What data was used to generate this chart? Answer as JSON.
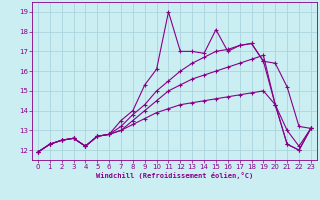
{
  "xlabel": "Windchill (Refroidissement éolien,°C)",
  "bg_color": "#cbeef3",
  "grid_color": "#aad4dd",
  "line_color": "#880088",
  "xlim": [
    -0.5,
    23.5
  ],
  "ylim": [
    11.5,
    19.5
  ],
  "yticks": [
    12,
    13,
    14,
    15,
    16,
    17,
    18,
    19
  ],
  "xticks": [
    0,
    1,
    2,
    3,
    4,
    5,
    6,
    7,
    8,
    9,
    10,
    11,
    12,
    13,
    14,
    15,
    16,
    17,
    18,
    19,
    20,
    21,
    22,
    23
  ],
  "lines": [
    [
      11.9,
      12.3,
      12.5,
      12.6,
      12.2,
      12.7,
      12.8,
      13.5,
      14.0,
      15.3,
      16.1,
      19.0,
      17.0,
      17.0,
      16.9,
      18.1,
      17.0,
      17.3,
      17.4,
      16.5,
      14.3,
      12.3,
      12.0,
      13.1
    ],
    [
      11.9,
      12.3,
      12.5,
      12.6,
      12.2,
      12.7,
      12.8,
      13.2,
      13.8,
      14.3,
      15.0,
      15.5,
      16.0,
      16.4,
      16.7,
      17.0,
      17.1,
      17.3,
      17.4,
      16.5,
      16.4,
      15.2,
      13.2,
      13.1
    ],
    [
      11.9,
      12.3,
      12.5,
      12.6,
      12.2,
      12.7,
      12.8,
      13.0,
      13.5,
      14.0,
      14.5,
      15.0,
      15.3,
      15.6,
      15.8,
      16.0,
      16.2,
      16.4,
      16.6,
      16.8,
      14.3,
      12.3,
      12.0,
      13.1
    ],
    [
      11.9,
      12.3,
      12.5,
      12.6,
      12.2,
      12.7,
      12.8,
      13.0,
      13.3,
      13.6,
      13.9,
      14.1,
      14.3,
      14.4,
      14.5,
      14.6,
      14.7,
      14.8,
      14.9,
      15.0,
      14.3,
      13.0,
      12.2,
      13.1
    ]
  ]
}
